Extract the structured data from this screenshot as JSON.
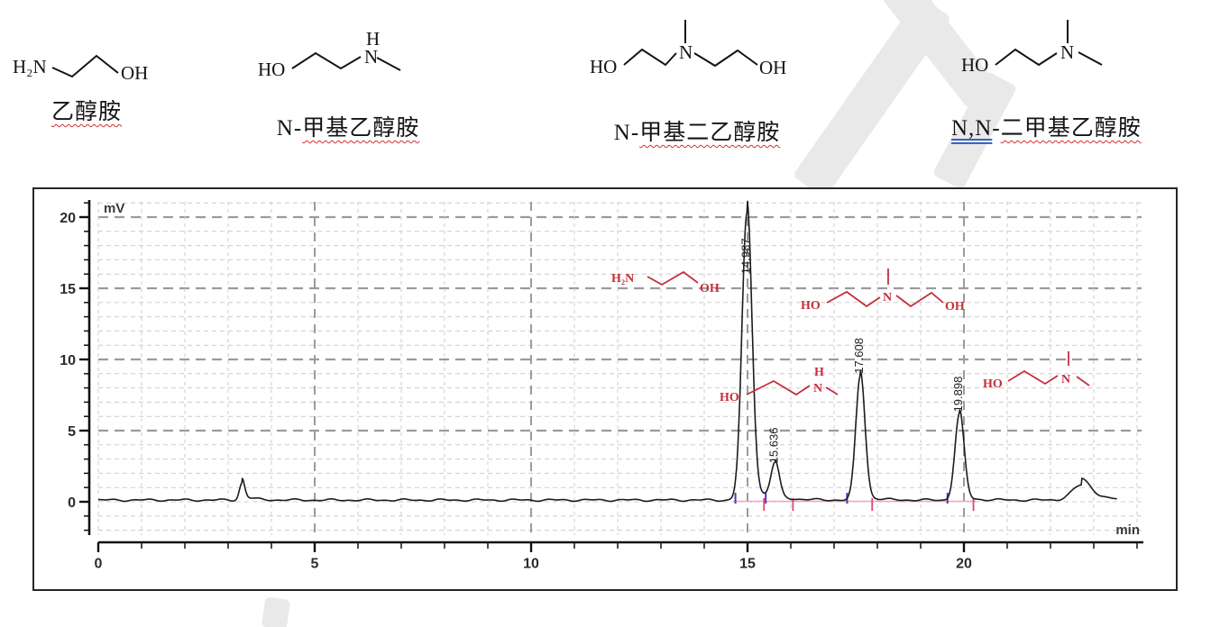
{
  "compounds": [
    {
      "id": "ethanolamine",
      "atoms": {
        "a1": "H₂N",
        "a2": "OH"
      },
      "label_parts": [
        {
          "text": "乙醇胺",
          "style": "wavy"
        }
      ]
    },
    {
      "id": "n-methylethanolamine",
      "atoms": {
        "a1": "HO",
        "a2": "H",
        "a3": "N"
      },
      "label_parts": [
        {
          "text": "N-",
          "style": "plain"
        },
        {
          "text": "甲基乙醇胺",
          "style": "wavy"
        }
      ]
    },
    {
      "id": "n-methyldiethanolamine",
      "atoms": {
        "a1": "HO",
        "a2": "N",
        "a3": "OH"
      },
      "label_parts": [
        {
          "text": "N-",
          "style": "plain"
        },
        {
          "text": "甲基二乙醇胺",
          "style": "wavy"
        }
      ]
    },
    {
      "id": "nn-dimethylethanolamine",
      "atoms": {
        "a1": "HO",
        "a2": "N"
      },
      "label_parts": [
        {
          "text": "N,N",
          "style": "double"
        },
        {
          "text": "-",
          "style": "plain"
        },
        {
          "text": "二甲基乙醇胺",
          "style": "wavy"
        }
      ]
    }
  ],
  "chart_data": {
    "type": "line",
    "title": "",
    "ylabel": "mV",
    "xlabel": "min",
    "x_range": [
      0,
      24.2
    ],
    "y_range": [
      -2.5,
      21.5
    ],
    "x_major_ticks": [
      0,
      5,
      10,
      15,
      20
    ],
    "x_minor_step": 1,
    "y_major_ticks": [
      0,
      5,
      10,
      15,
      20
    ],
    "y_minor_step": 1,
    "grid": "dashed",
    "baseline_offset_mV": 0.12,
    "peaks": [
      {
        "rt_min": 3.32,
        "height_mV": 1.2,
        "sigma_min": 0.06,
        "tail_frac": 0.3,
        "tail_tau_min": 0.22
      },
      {
        "rt_min": 14.987,
        "height_mV": 20.1,
        "sigma_min": 0.115,
        "tail_frac": 0.05,
        "tail_tau_min": 0.4,
        "label": "14.987"
      },
      {
        "rt_min": 15.636,
        "height_mV": 2.45,
        "sigma_min": 0.095,
        "tail_frac": 0.05,
        "tail_tau_min": 0.3,
        "label": "15.636"
      },
      {
        "rt_min": 17.608,
        "height_mV": 8.75,
        "sigma_min": 0.105,
        "tail_frac": 0.04,
        "tail_tau_min": 0.3,
        "label": "17.608"
      },
      {
        "rt_min": 19.898,
        "height_mV": 6.05,
        "sigma_min": 0.105,
        "tail_frac": 0.04,
        "tail_tau_min": 0.3,
        "label": "19.898"
      },
      {
        "rt_min": 22.72,
        "height_mV": 1.05,
        "sigma_min": 0.22,
        "tail_frac": 0.45,
        "tail_tau_min": 0.45
      }
    ],
    "integration": {
      "baseline_start_min": 14.68,
      "baseline_end_min": 20.28,
      "peak_start_markers_min": [
        14.72,
        15.42,
        17.3,
        19.62
      ],
      "peak_end_markers_min": [
        15.38,
        16.05,
        17.88,
        20.22
      ]
    },
    "red_annotations": [
      {
        "compound": "ethanolamine",
        "atoms": {
          "a1": "H₂N",
          "a2": "OH"
        }
      },
      {
        "compound": "n-methylethanolamine",
        "atoms": {
          "a1": "HO",
          "a2": "H",
          "a3": "N"
        }
      },
      {
        "compound": "n-methyldiethanolamine",
        "atoms": {
          "a1": "HO",
          "a2": "N",
          "a3": "OH"
        }
      },
      {
        "compound": "nn-dimethylethanolamine",
        "atoms": {
          "a1": "HO",
          "a2": "N"
        }
      }
    ],
    "colors": {
      "trace": "#1c1c1c",
      "grid_minor": "#cccccc",
      "grid_major": "#9b9b9b",
      "axis": "#111111",
      "tick_label": "#2b2b2b",
      "red_structure": "#c32f3c",
      "integration_baseline": "#f2a6bd",
      "marker_start": "#5b2fbe",
      "marker_end": "#e0447a"
    }
  }
}
